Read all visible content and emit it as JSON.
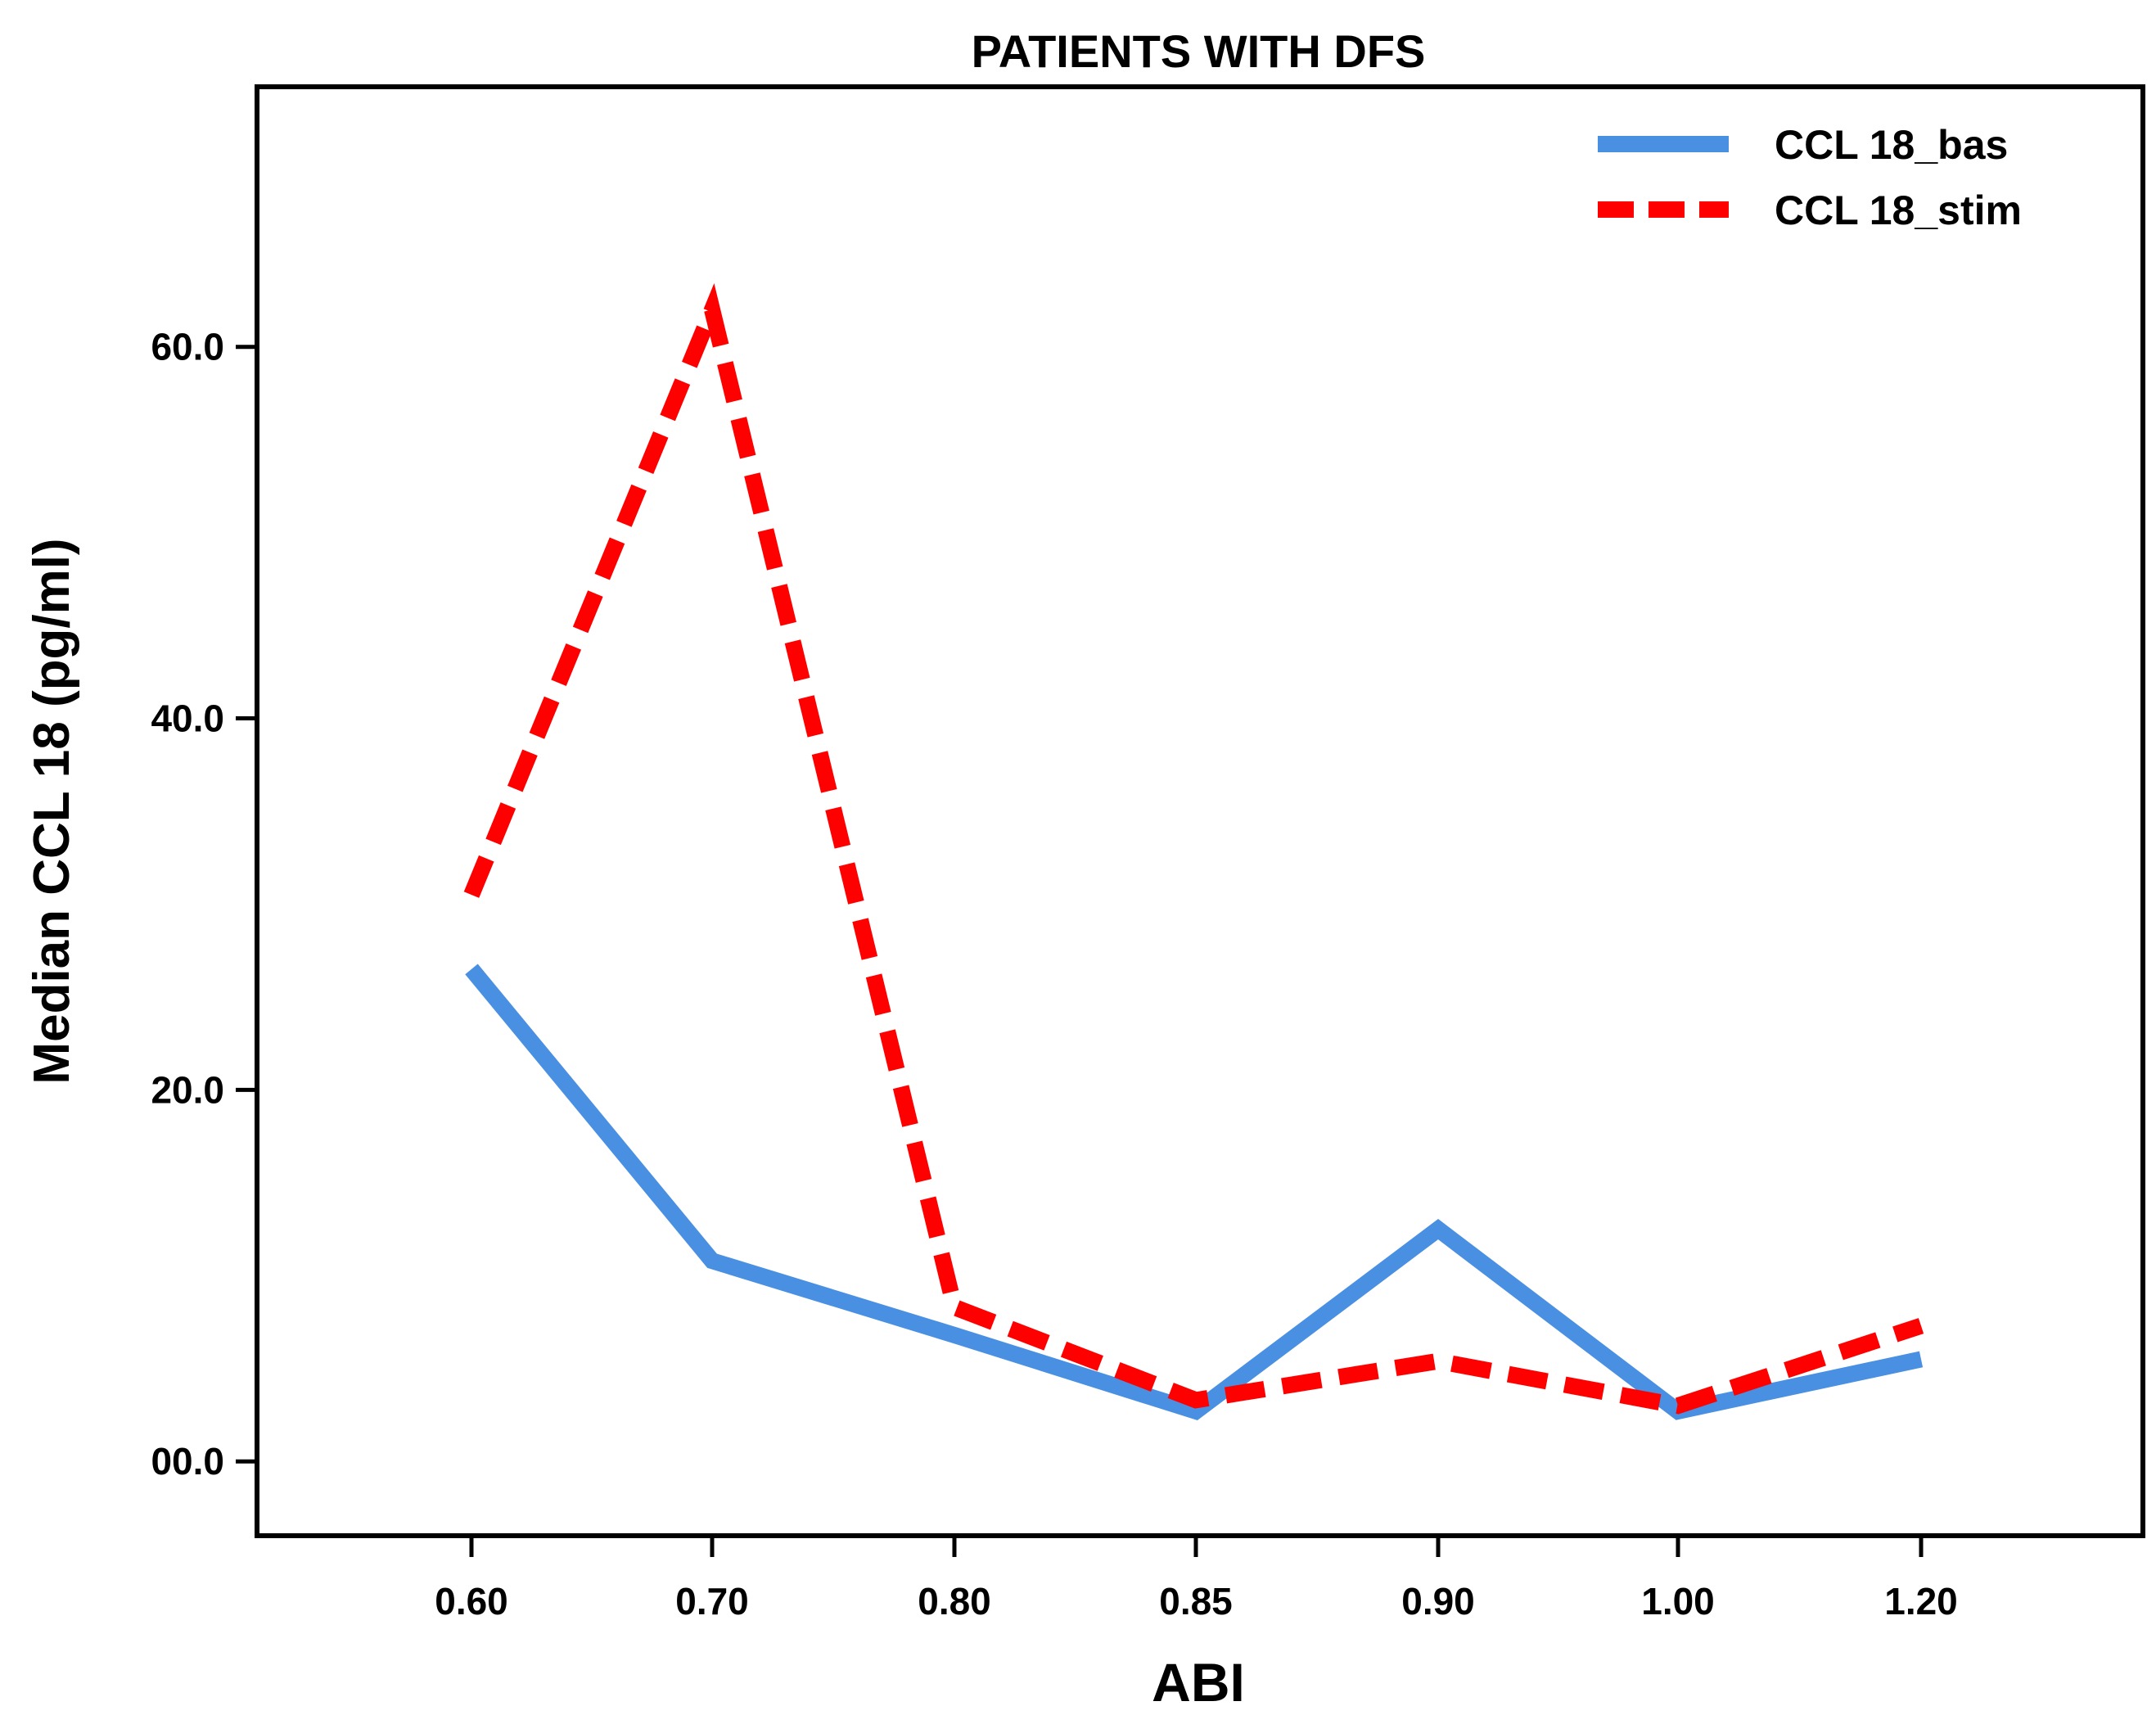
{
  "chart_data": {
    "type": "line",
    "title": "PATIENTS WITH DFS",
    "xlabel": "ABI",
    "ylabel": "Median CCL 18 (pg/ml)",
    "categories": [
      "0.60",
      "0.70",
      "0.80",
      "0.85",
      "0.90",
      "1.00",
      "1.20"
    ],
    "y_ticks": [
      {
        "value": 0,
        "label": "00.0"
      },
      {
        "value": 20,
        "label": "20.0"
      },
      {
        "value": 40,
        "label": "40.0"
      },
      {
        "value": 60,
        "label": "60.0"
      }
    ],
    "ylim": [
      -4,
      74
    ],
    "legend_position": "top-right",
    "grid": false,
    "series": [
      {
        "name": "CCL 18_bas",
        "color": "#4a90e2",
        "style": "solid",
        "values": [
          26.5,
          10.8,
          6.8,
          2.7,
          12.5,
          2.7,
          5.5
        ]
      },
      {
        "name": "CCL 18_stim",
        "color": "#ff0000",
        "style": "dashed",
        "values": [
          30.5,
          62.0,
          8.3,
          3.3,
          5.4,
          3.0,
          7.3
        ]
      }
    ]
  }
}
